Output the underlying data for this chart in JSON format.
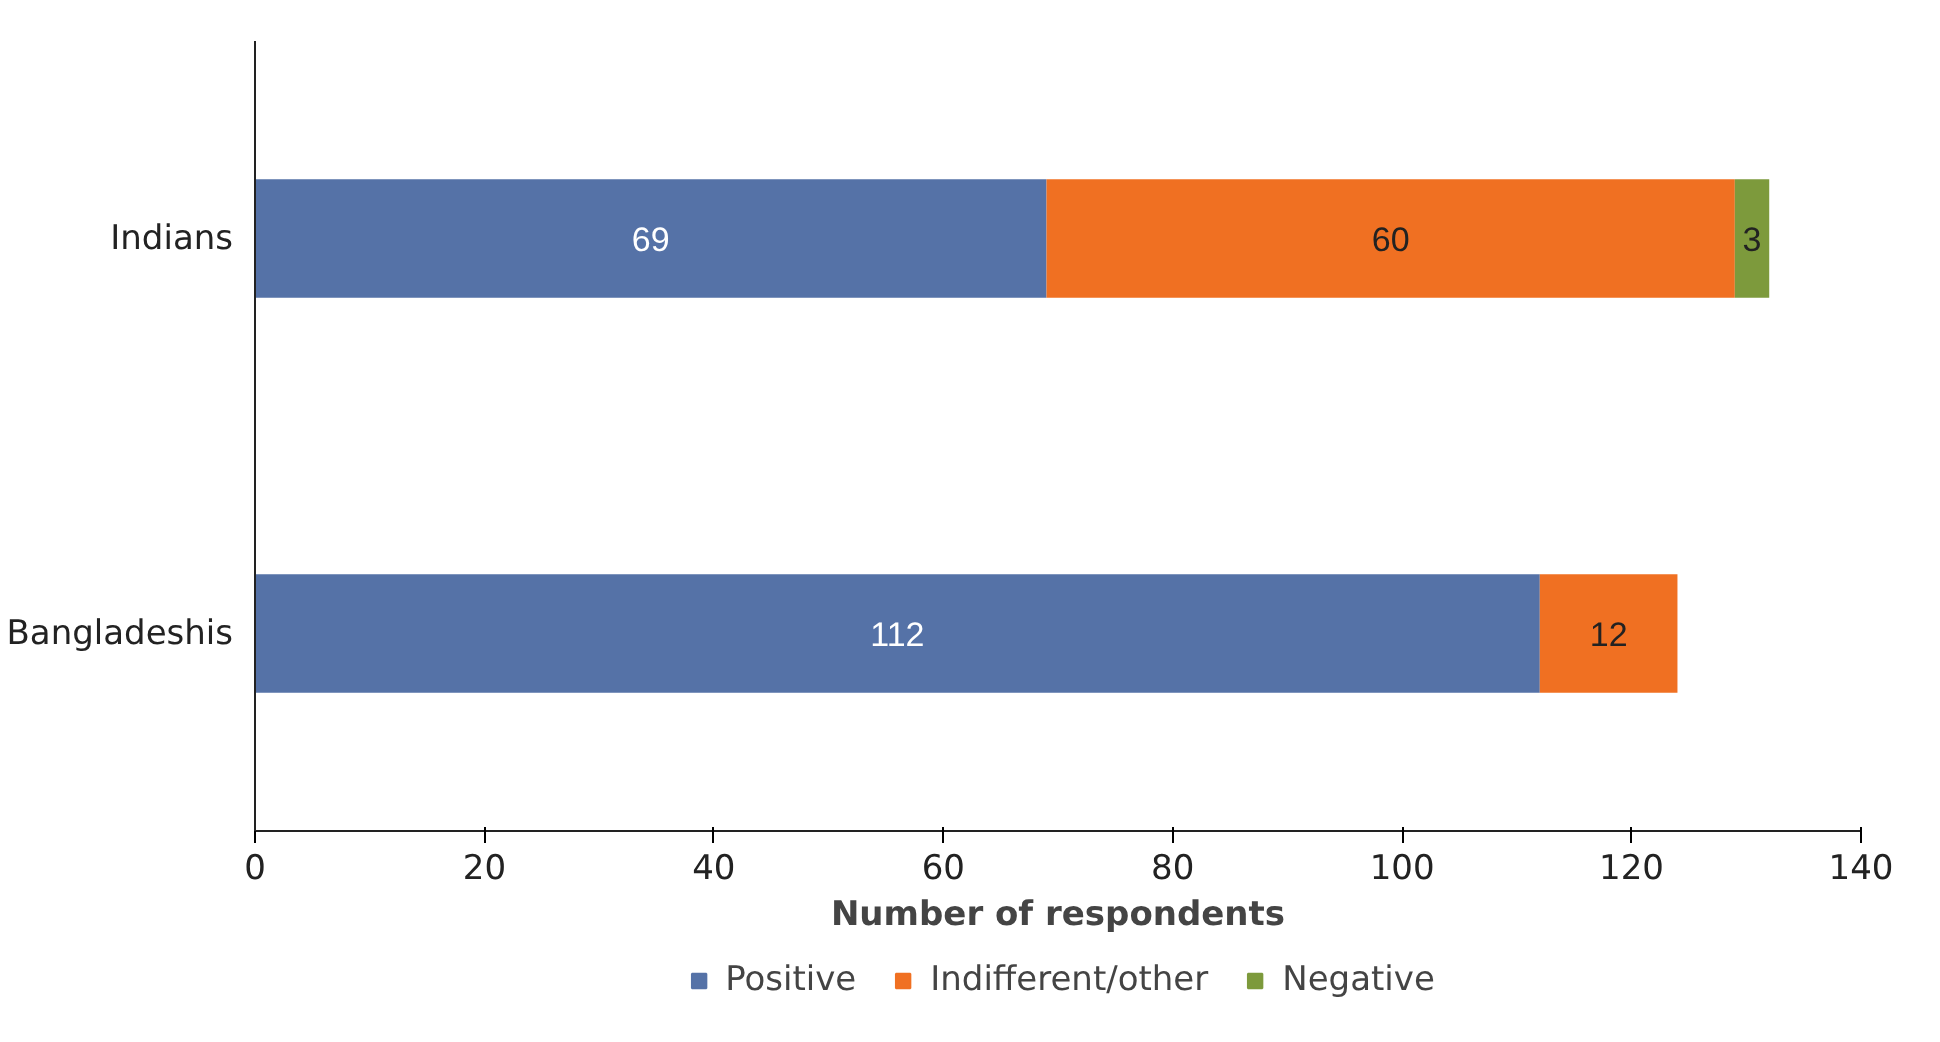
{
  "chart_data": {
    "type": "bar",
    "orientation": "horizontal",
    "stacked": true,
    "data_labels": true,
    "categories": [
      "Indians",
      "Bangladeshis"
    ],
    "series": [
      {
        "name": "Positive",
        "color": "#5572a7",
        "values": [
          69,
          112
        ]
      },
      {
        "name": "Indifferent/other",
        "color": "#f07022",
        "values": [
          60,
          12
        ]
      },
      {
        "name": "Negative",
        "color": "#7d9a3c",
        "values": [
          3,
          null
        ]
      }
    ],
    "xlabel": "Number of respondents",
    "xlim": [
      0,
      140
    ],
    "xticks": [
      0,
      20,
      40,
      60,
      80,
      100,
      120,
      140
    ],
    "grid": false,
    "legend": "bottom"
  }
}
